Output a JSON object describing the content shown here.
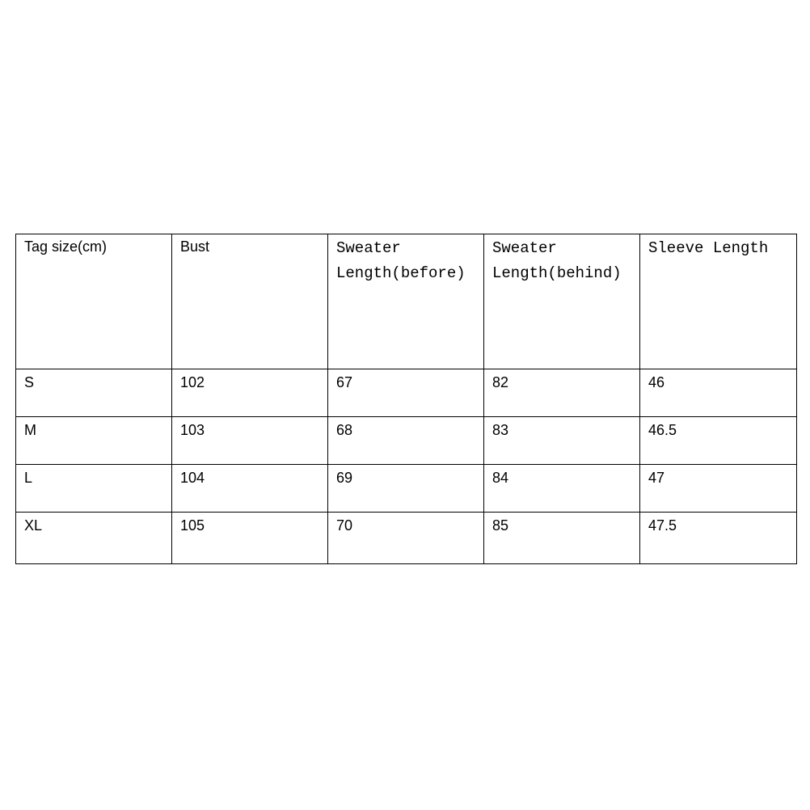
{
  "table": {
    "headers": [
      "Tag size(cm)",
      "Bust",
      "Sweater Length(before)",
      "Sweater Length(behind)",
      "Sleeve Length"
    ],
    "rows": [
      [
        "S",
        "102",
        "67",
        "82",
        "46"
      ],
      [
        "M",
        "103",
        "68",
        "83",
        "46.5"
      ],
      [
        "L",
        "104",
        "69",
        "84",
        "47"
      ],
      [
        "XL",
        "105",
        "70",
        "85",
        "47.5"
      ]
    ]
  }
}
